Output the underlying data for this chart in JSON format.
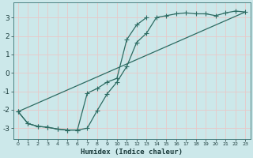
{
  "xlabel": "Humidex (Indice chaleur)",
  "bg_color": "#cce8ea",
  "grid_color": "#e8c8c8",
  "line_color": "#2d6b62",
  "xlim": [
    -0.5,
    23.5
  ],
  "ylim": [
    -3.6,
    3.8
  ],
  "xticks": [
    0,
    1,
    2,
    3,
    4,
    5,
    6,
    7,
    8,
    9,
    10,
    11,
    12,
    13,
    14,
    15,
    16,
    17,
    18,
    19,
    20,
    21,
    22,
    23
  ],
  "yticks": [
    -3,
    -2,
    -1,
    0,
    1,
    2,
    3
  ],
  "line1_x": [
    0,
    1,
    2,
    3,
    4,
    5,
    6,
    7,
    8,
    9,
    10,
    11,
    12,
    13,
    14,
    15,
    16,
    17,
    18,
    19,
    20,
    21,
    22,
    23
  ],
  "line1_y": [
    -2.1,
    -2.75,
    -2.9,
    -2.95,
    -3.05,
    -3.1,
    -3.1,
    -3.0,
    -2.05,
    -1.15,
    -0.5,
    0.35,
    1.65,
    2.15,
    3.0,
    3.1,
    3.2,
    3.25,
    3.2,
    3.2,
    3.1,
    3.25,
    3.35,
    3.3
  ],
  "line2_x": [
    0,
    1,
    2,
    3,
    4,
    5,
    6,
    7,
    8,
    9,
    10,
    11,
    12,
    13
  ],
  "line2_y": [
    -2.1,
    -2.75,
    -2.9,
    -2.95,
    -3.05,
    -3.1,
    -3.1,
    -1.1,
    -0.85,
    -0.5,
    -0.3,
    1.8,
    2.6,
    3.0
  ],
  "line3_x": [
    0,
    23
  ],
  "line3_y": [
    -2.1,
    3.3
  ]
}
